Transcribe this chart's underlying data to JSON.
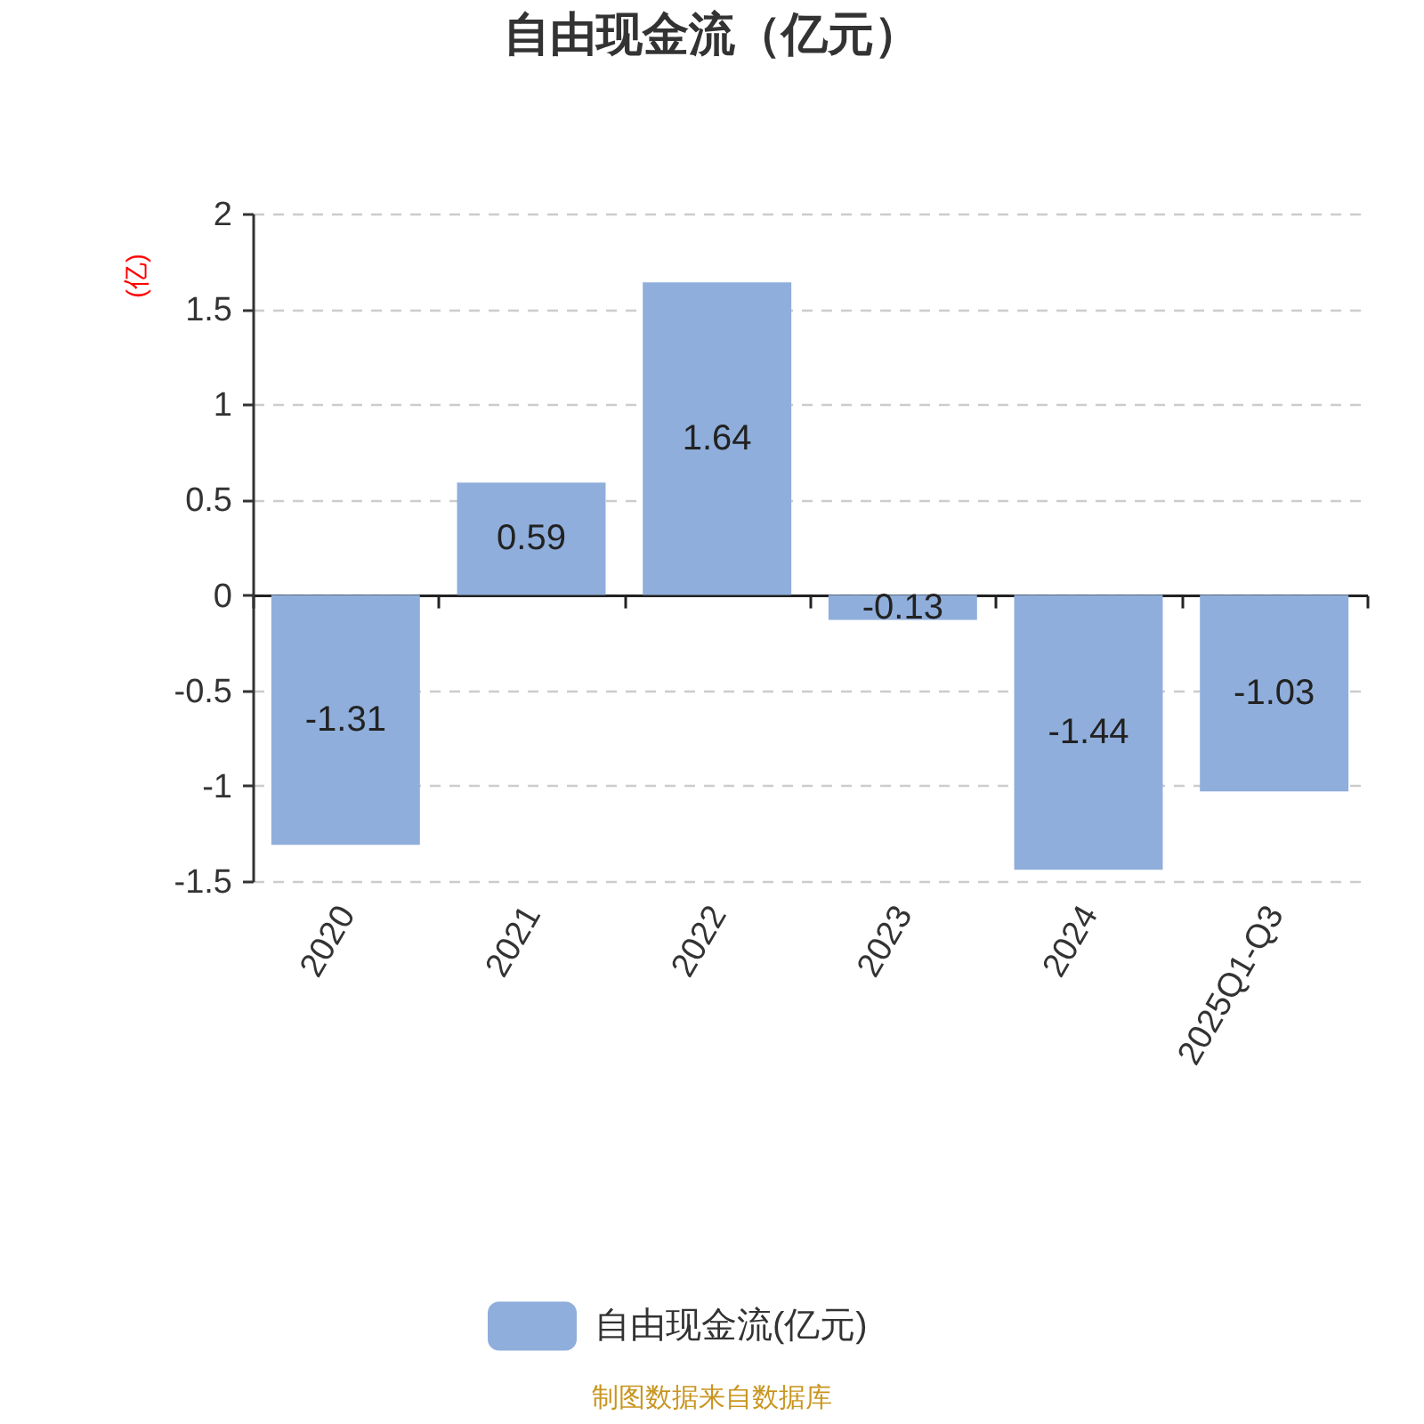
{
  "chart_data": {
    "type": "bar",
    "title": "自由现金流（亿元）",
    "ylabel": "(亿)",
    "categories": [
      "2020",
      "2021",
      "2022",
      "2023",
      "2024",
      "2025Q1-Q3"
    ],
    "series": [
      {
        "name": "自由现金流(亿元)",
        "color": "#8faedb",
        "values": [
          -1.31,
          0.59,
          1.64,
          -0.13,
          -1.44,
          -1.03
        ]
      }
    ],
    "ylim": [
      -1.5,
      2
    ],
    "yticks": [
      -1.5,
      -1,
      -0.5,
      0,
      0.5,
      1,
      1.5,
      2
    ],
    "grid": "y",
    "legend": "bottom",
    "data_labels": true,
    "annotations": [
      "制图数据来自数据库"
    ]
  }
}
